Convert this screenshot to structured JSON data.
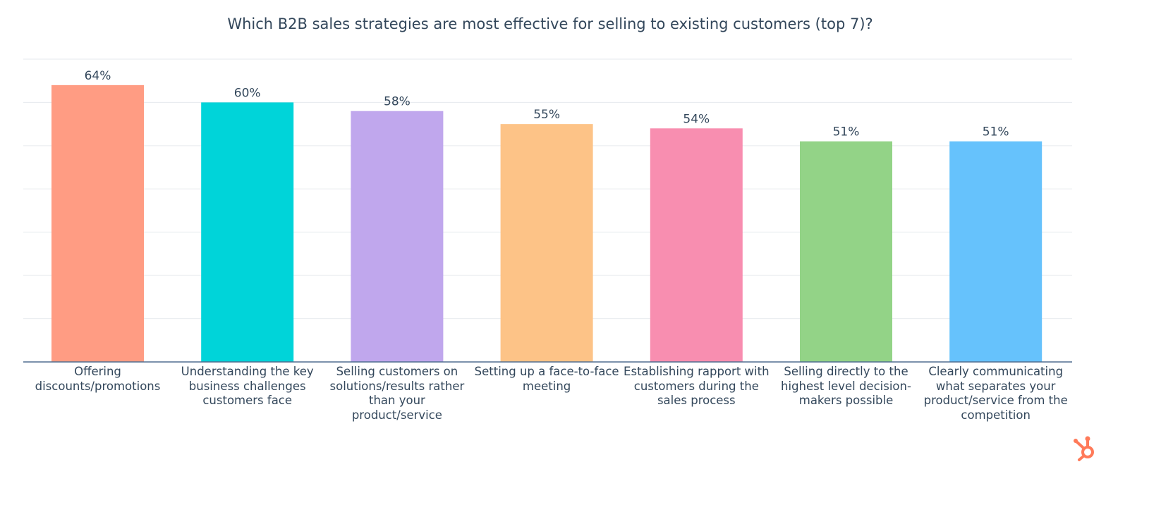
{
  "chart_data": {
    "type": "bar",
    "title": "Which B2B sales strategies are most effective for selling to existing customers (top 7)?",
    "categories": [
      "Offering discounts/promotions",
      "Understanding the key business challenges customers face",
      "Selling customers on solutions/results rather than your product/service",
      "Setting up a face-to-face meeting",
      "Establishing rapport with customers during the sales process",
      "Selling directly to the highest level decision-makers possible",
      "Clearly communicating what separates your product/service from the competition"
    ],
    "values": [
      64,
      60,
      58,
      55,
      54,
      51,
      51
    ],
    "data_labels": [
      "64%",
      "60%",
      "58%",
      "55%",
      "54%",
      "51%",
      "51%"
    ],
    "colors": [
      "#ff9c83",
      "#00d4d9",
      "#c0a7ed",
      "#fdc387",
      "#f88eb0",
      "#93d387",
      "#66c2fc"
    ],
    "xlabel": "",
    "ylabel": "",
    "ylim": [
      0,
      70
    ],
    "grid": true,
    "gridline_step": 10,
    "legend": "none"
  },
  "brand": {
    "logo": "HubSpot sprocket",
    "color": "#ff7a59"
  }
}
